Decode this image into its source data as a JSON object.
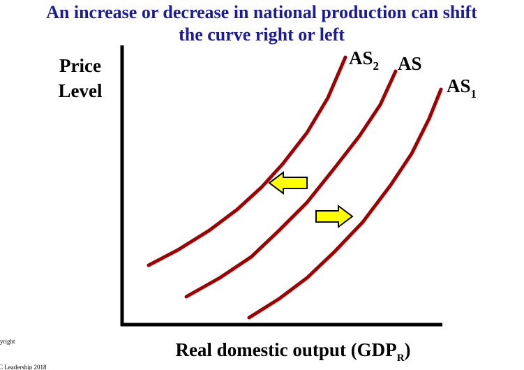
{
  "title": {
    "line1": "An increase or decrease in national production can shift",
    "line2": "the curve right or left"
  },
  "y_axis_label": {
    "line1": "Price",
    "line2": "Level"
  },
  "x_axis_label": {
    "text": "Real domestic output (GDP",
    "subscript": "R",
    "suffix": ")"
  },
  "curves": [
    {
      "label": "AS",
      "subscript": "2"
    },
    {
      "label": "AS"
    },
    {
      "label": "AS",
      "subscript": "1"
    }
  ],
  "copyright": {
    "line1": "yright",
    "line2": "C Leadership 2018"
  }
}
